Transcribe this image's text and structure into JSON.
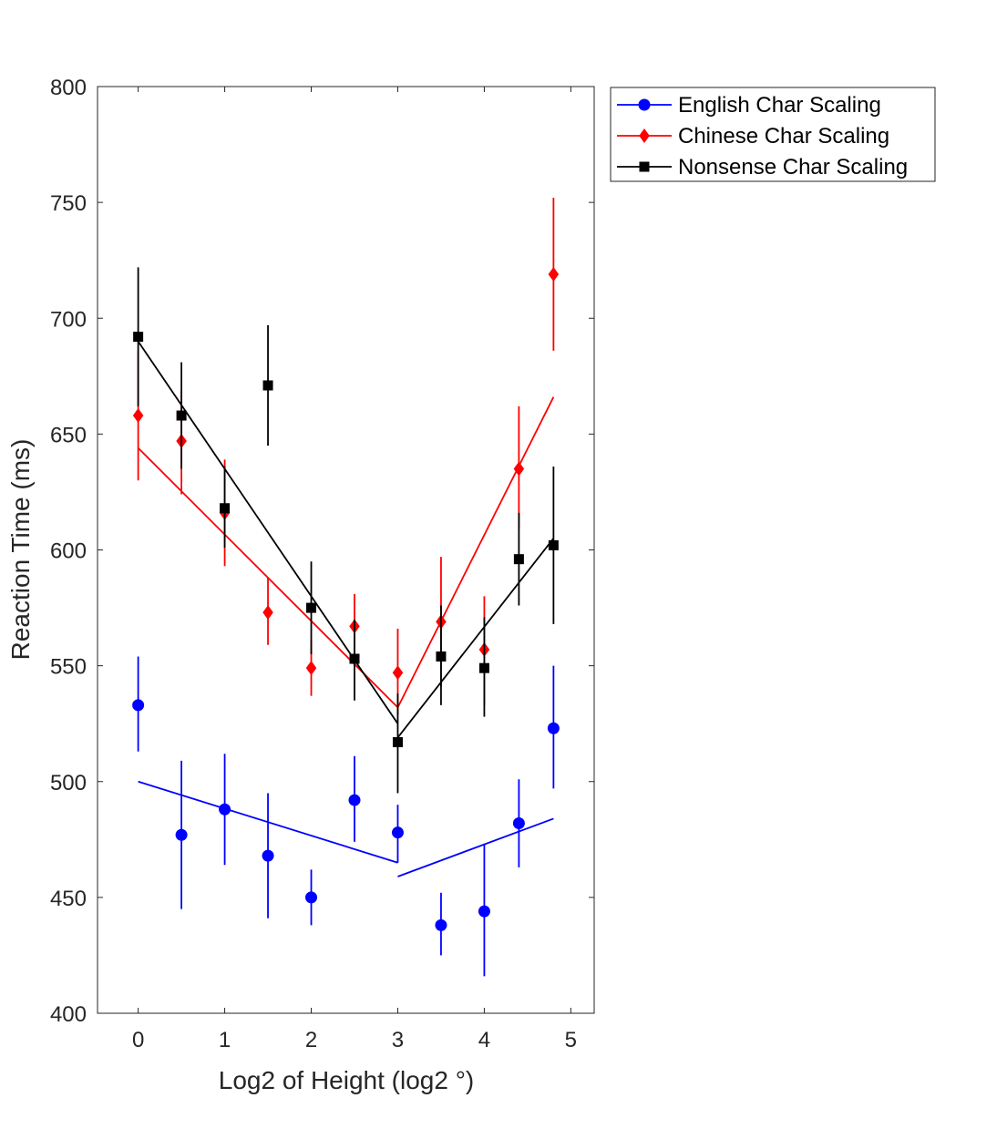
{
  "chart_data": {
    "type": "scatter",
    "xlabel": "Log2 of Height (log2 °)",
    "ylabel": "Reaction Time (ms)",
    "xlim": [
      -0.47,
      5.27
    ],
    "ylim": [
      400,
      800
    ],
    "xticks": [
      "0",
      "1",
      "2",
      "3",
      "4",
      "5"
    ],
    "yticks": [
      "400",
      "450",
      "500",
      "550",
      "600",
      "650",
      "700",
      "750",
      "800"
    ],
    "grid": false,
    "legend_position": "outside-top-right",
    "x": [
      0,
      0.5,
      1,
      1.5,
      2,
      2.5,
      3,
      3.5,
      4,
      4.4,
      4.8
    ],
    "series": [
      {
        "name": "English Char Scaling",
        "color": "#0000ff",
        "marker": "circle",
        "values": [
          533,
          477,
          488,
          468,
          450,
          492,
          478,
          438,
          444,
          482,
          523
        ],
        "err_low": [
          513,
          445,
          464,
          441,
          438,
          474,
          465,
          425,
          416,
          463,
          497
        ],
        "err_high": [
          554,
          509,
          512,
          495,
          462,
          511,
          490,
          452,
          473,
          501,
          550
        ],
        "fit": [
          {
            "x": [
              0,
              3
            ],
            "y": [
              500,
              465
            ]
          },
          {
            "x": [
              3,
              4.8
            ],
            "y": [
              459,
              484
            ]
          }
        ]
      },
      {
        "name": "Chinese Char Scaling",
        "color": "#ff0000",
        "marker": "diamond",
        "values": [
          658,
          647,
          616,
          573,
          549,
          567,
          547,
          569,
          557,
          635,
          719
        ],
        "err_low": [
          630,
          624,
          593,
          559,
          537,
          553,
          529,
          541,
          533,
          609,
          686
        ],
        "err_high": [
          686,
          669,
          639,
          588,
          561,
          581,
          566,
          597,
          580,
          662,
          752
        ],
        "fit": [
          {
            "x": [
              0,
              3
            ],
            "y": [
              644,
              532
            ]
          },
          {
            "x": [
              3,
              4.8
            ],
            "y": [
              532,
              666
            ]
          }
        ]
      },
      {
        "name": "Nonsense Char Scaling",
        "color": "#000000",
        "marker": "square",
        "values": [
          692,
          658,
          618,
          671,
          575,
          553,
          517,
          554,
          549,
          596,
          602
        ],
        "err_low": [
          662,
          635,
          601,
          645,
          555,
          535,
          495,
          533,
          528,
          576,
          568
        ],
        "err_high": [
          722,
          681,
          636,
          697,
          595,
          570,
          538,
          576,
          571,
          616,
          636
        ],
        "fit": [
          {
            "x": [
              0,
              3
            ],
            "y": [
              690,
              525
            ]
          },
          {
            "x": [
              3,
              4.8
            ],
            "y": [
              519,
              605
            ]
          }
        ]
      }
    ]
  }
}
